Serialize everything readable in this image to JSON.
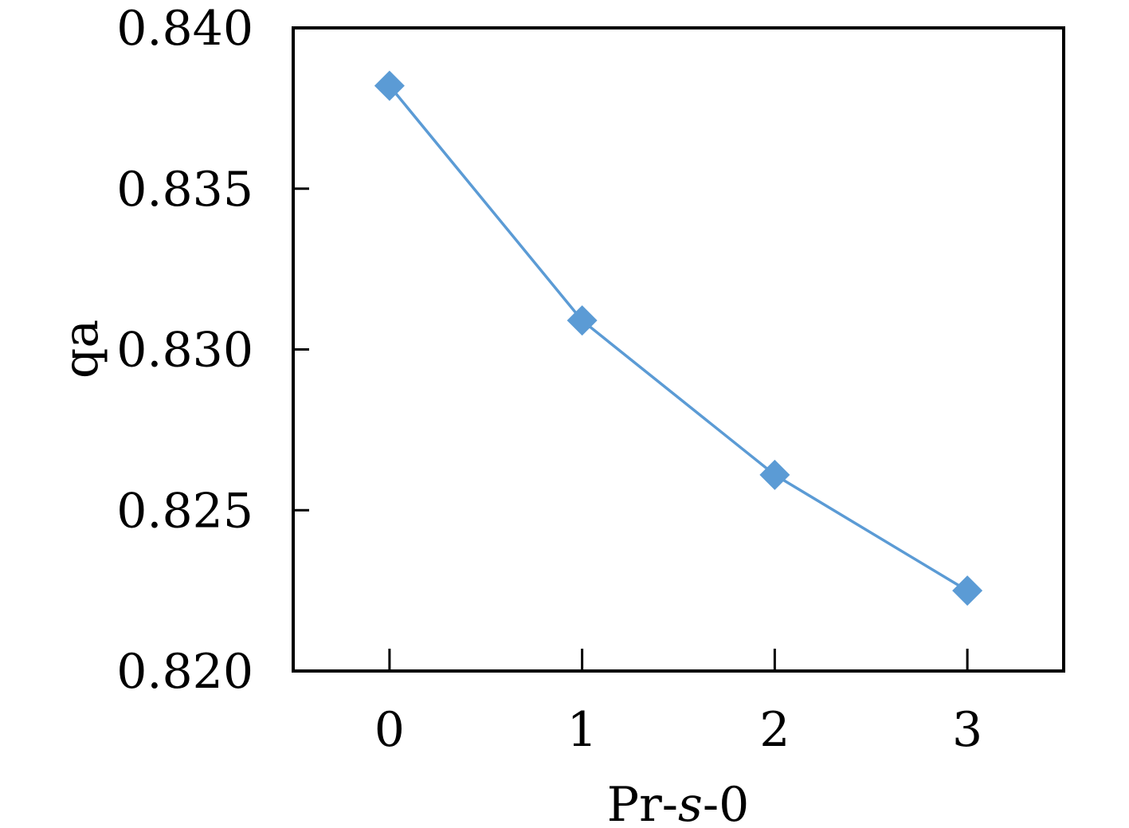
{
  "chart_data": {
    "type": "line",
    "xlabel": "Pr-s-0",
    "xlabel_parts": [
      "Pr-",
      "s",
      "-0"
    ],
    "ylabel": "qa",
    "x_ticks": [
      "0",
      "1",
      "2",
      "3"
    ],
    "y_ticks": [
      "0.840",
      "0.835",
      "0.830",
      "0.825",
      "0.820"
    ],
    "ylim": [
      0.82,
      0.84
    ],
    "xlim": [
      -0.5,
      3.5
    ],
    "grid": false,
    "legend": "none",
    "series": [
      {
        "x": [
          0,
          1,
          2,
          3
        ],
        "values": [
          0.8382,
          0.8309,
          0.8261,
          0.8225
        ],
        "color": "#5b9bd5",
        "marker": "diamond"
      }
    ]
  }
}
